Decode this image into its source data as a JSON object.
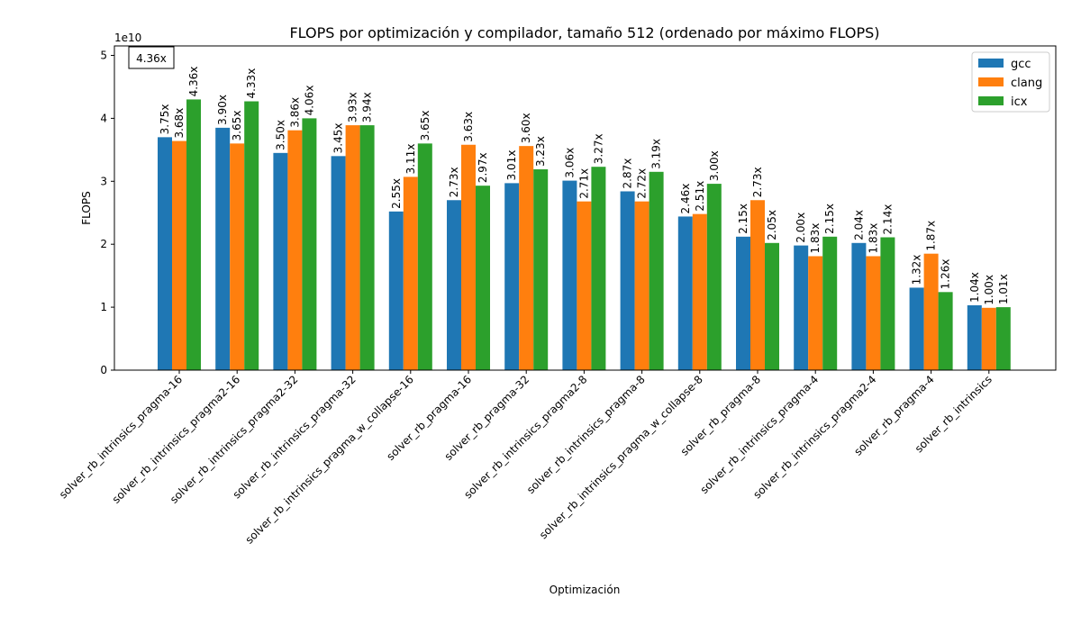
{
  "chart_data": {
    "type": "bar",
    "title": "FLOPS por optimización y compilador, tamaño 512 (ordenado por máximo FLOPS)",
    "xlabel": "Optimización",
    "ylabel": "FLOPS",
    "y_offset_label": "1e10",
    "y_scale": 10000000000,
    "ylim": [
      0,
      5.15
    ],
    "y_ticks": [
      0,
      1,
      2,
      3,
      4,
      5
    ],
    "legend_position": "top-right",
    "max_annotation": "4.36x",
    "categories": [
      "solver_rb_intrinsics_pragma-16",
      "solver_rb_intrinsics_pragma2-16",
      "solver_rb_intrinsics_pragma2-32",
      "solver_rb_intrinsics_pragma-32",
      "solver_rb_intrinsics_pragma_w_collapse-16",
      "solver_rb_pragma-16",
      "solver_rb_pragma-32",
      "solver_rb_intrinsics_pragma2-8",
      "solver_rb_intrinsics_pragma-8",
      "solver_rb_intrinsics_pragma_w_collapse-8",
      "solver_rb_pragma-8",
      "solver_rb_intrinsics_pragma-4",
      "solver_rb_intrinsics_pragma2-4",
      "solver_rb_pragma-4",
      "solver_rb_intrinsics"
    ],
    "series": [
      {
        "name": "gcc",
        "color": "#1f77b4",
        "values": [
          3.7,
          3.85,
          3.45,
          3.4,
          2.52,
          2.7,
          2.97,
          3.01,
          2.84,
          2.44,
          2.12,
          1.98,
          2.02,
          1.31,
          1.03
        ],
        "labels": [
          "3.75x",
          "3.90x",
          "3.50x",
          "3.45x",
          "2.55x",
          "2.73x",
          "3.01x",
          "3.06x",
          "2.87x",
          "2.46x",
          "2.15x",
          "2.00x",
          "2.04x",
          "1.32x",
          "1.04x"
        ]
      },
      {
        "name": "clang",
        "color": "#ff7f0e",
        "values": [
          3.64,
          3.6,
          3.81,
          3.89,
          3.07,
          3.58,
          3.56,
          2.68,
          2.68,
          2.48,
          2.7,
          1.81,
          1.81,
          1.85,
          0.99
        ],
        "labels": [
          "3.68x",
          "3.65x",
          "3.86x",
          "3.93x",
          "3.11x",
          "3.63x",
          "3.60x",
          "2.71x",
          "2.72x",
          "2.51x",
          "2.73x",
          "1.83x",
          "1.83x",
          "1.87x",
          "1.00x"
        ]
      },
      {
        "name": "icx",
        "color": "#2ca02c",
        "values": [
          4.3,
          4.27,
          4.0,
          3.89,
          3.6,
          2.93,
          3.19,
          3.23,
          3.15,
          2.96,
          2.02,
          2.12,
          2.11,
          1.24,
          1.0
        ],
        "labels": [
          "4.36x",
          "4.33x",
          "4.06x",
          "3.94x",
          "3.65x",
          "2.97x",
          "3.23x",
          "3.27x",
          "3.19x",
          "3.00x",
          "2.05x",
          "2.15x",
          "2.14x",
          "1.26x",
          "1.01x"
        ]
      }
    ]
  }
}
